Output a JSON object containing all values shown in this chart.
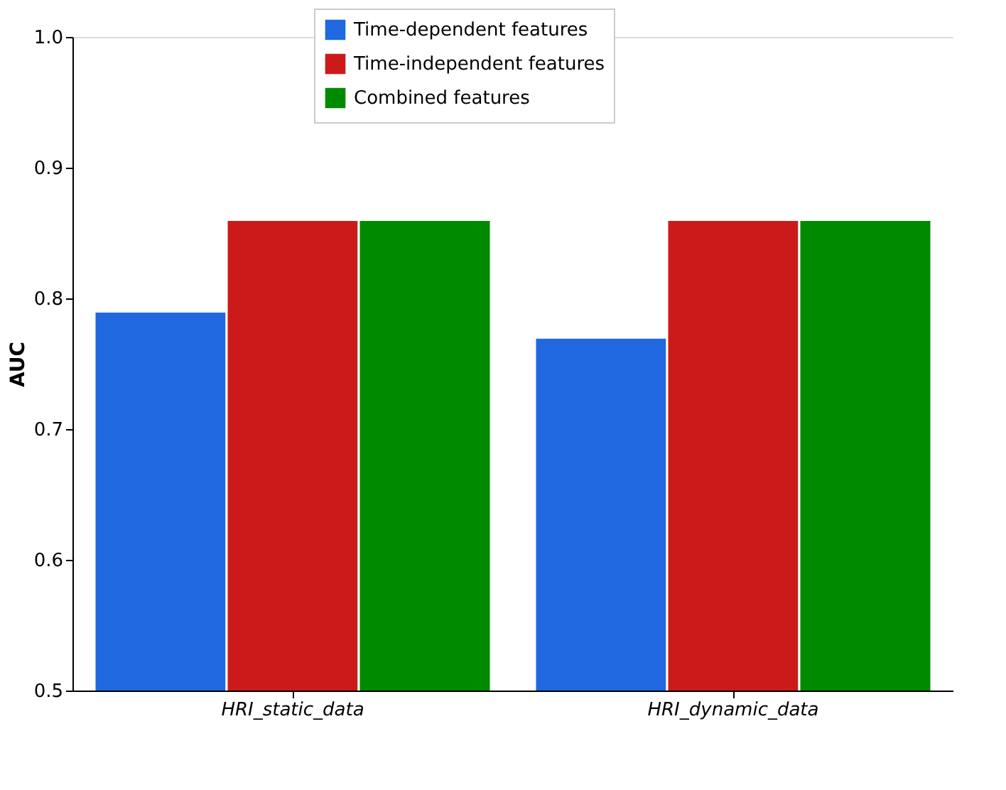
{
  "chart_data": {
    "type": "bar",
    "ylabel": "AUC",
    "categories": [
      "HRI_static_data",
      "HRI_dynamic_data"
    ],
    "series": [
      {
        "name": "Time-dependent features",
        "color": "#1f68e0",
        "values": [
          0.79,
          0.77
        ]
      },
      {
        "name": "Time-independent features",
        "color": "#cc1a1a",
        "values": [
          0.86,
          0.86
        ]
      },
      {
        "name": "Combined features",
        "color": "#008a00",
        "values": [
          0.86,
          0.86
        ]
      }
    ],
    "ylim": [
      0.5,
      1.0
    ],
    "yticks": [
      0.5,
      0.6,
      0.7,
      0.8,
      0.9,
      {
        "value": 1.0,
        "label": "1.0"
      }
    ],
    "grid": false,
    "legend": "top"
  }
}
